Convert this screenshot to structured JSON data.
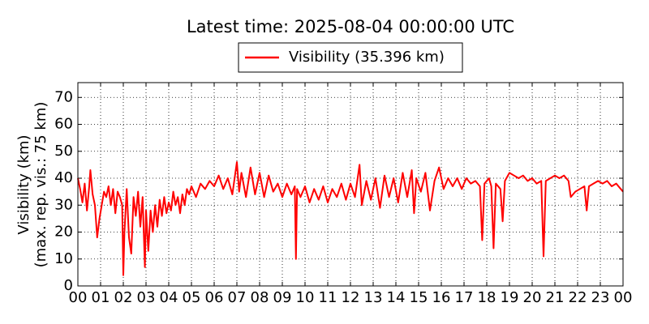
{
  "chart_data": {
    "type": "line",
    "title": "Latest time: 2025-08-04 00:00:00 UTC",
    "ylabel": [
      "Visibility (km)",
      "(max. rep. vis.: 75 km)"
    ],
    "grid": true,
    "xlim": [
      0,
      24
    ],
    "ylim": [
      0,
      75.5
    ],
    "xticks": [
      {
        "value": 0,
        "label": "00"
      },
      {
        "value": 1,
        "label": "01"
      },
      {
        "value": 2,
        "label": "02"
      },
      {
        "value": 3,
        "label": "03"
      },
      {
        "value": 4,
        "label": "04"
      },
      {
        "value": 5,
        "label": "05"
      },
      {
        "value": 6,
        "label": "06"
      },
      {
        "value": 7,
        "label": "07"
      },
      {
        "value": 8,
        "label": "08"
      },
      {
        "value": 9,
        "label": "09"
      },
      {
        "value": 10,
        "label": "10"
      },
      {
        "value": 11,
        "label": "11"
      },
      {
        "value": 12,
        "label": "12"
      },
      {
        "value": 13,
        "label": "13"
      },
      {
        "value": 14,
        "label": "14"
      },
      {
        "value": 15,
        "label": "15"
      },
      {
        "value": 16,
        "label": "16"
      },
      {
        "value": 17,
        "label": "17"
      },
      {
        "value": 18,
        "label": "18"
      },
      {
        "value": 19,
        "label": "19"
      },
      {
        "value": 20,
        "label": "20"
      },
      {
        "value": 21,
        "label": "21"
      },
      {
        "value": 22,
        "label": "22"
      },
      {
        "value": 23,
        "label": "23"
      },
      {
        "value": 24,
        "label": "00"
      }
    ],
    "yticks": [
      0,
      10,
      20,
      30,
      40,
      50,
      60,
      70
    ],
    "x": [
      0.0,
      0.1,
      0.2,
      0.3,
      0.4,
      0.5,
      0.55,
      0.65,
      0.75,
      0.85,
      0.95,
      1.05,
      1.15,
      1.25,
      1.35,
      1.45,
      1.55,
      1.65,
      1.75,
      1.85,
      1.95,
      2.0,
      2.05,
      2.15,
      2.25,
      2.35,
      2.45,
      2.55,
      2.65,
      2.75,
      2.85,
      2.95,
      3.0,
      3.1,
      3.2,
      3.3,
      3.4,
      3.5,
      3.6,
      3.7,
      3.8,
      3.9,
      4.0,
      4.1,
      4.2,
      4.3,
      4.4,
      4.5,
      4.6,
      4.7,
      4.8,
      4.9,
      5.0,
      5.2,
      5.4,
      5.6,
      5.8,
      6.0,
      6.2,
      6.4,
      6.6,
      6.8,
      7.0,
      7.1,
      7.2,
      7.4,
      7.6,
      7.8,
      8.0,
      8.2,
      8.4,
      8.6,
      8.8,
      9.0,
      9.2,
      9.4,
      9.55,
      9.6,
      9.65,
      9.8,
      10.0,
      10.2,
      10.4,
      10.6,
      10.8,
      11.0,
      11.2,
      11.4,
      11.6,
      11.8,
      12.0,
      12.2,
      12.4,
      12.5,
      12.7,
      12.9,
      13.1,
      13.3,
      13.5,
      13.7,
      13.9,
      14.1,
      14.3,
      14.5,
      14.7,
      14.8,
      14.9,
      15.1,
      15.3,
      15.5,
      15.7,
      15.9,
      16.1,
      16.3,
      16.5,
      16.7,
      16.9,
      17.1,
      17.3,
      17.5,
      17.7,
      17.8,
      17.9,
      18.1,
      18.2,
      18.3,
      18.4,
      18.6,
      18.7,
      18.8,
      19.0,
      19.2,
      19.4,
      19.6,
      19.8,
      20.0,
      20.2,
      20.4,
      20.5,
      20.6,
      20.8,
      21.0,
      21.2,
      21.4,
      21.6,
      21.7,
      21.9,
      22.1,
      22.3,
      22.4,
      22.5,
      22.7,
      22.9,
      23.1,
      23.3,
      23.5,
      23.7,
      23.9,
      24.0
    ],
    "series": [
      {
        "name": "Visibility (35.396 km)",
        "color": "#ff0000",
        "values": [
          40,
          36,
          31,
          38,
          28,
          37,
          43,
          34,
          30,
          18,
          25,
          30,
          35,
          33,
          37,
          30,
          36,
          27,
          35,
          33,
          30,
          4,
          20,
          36,
          18,
          12,
          33,
          26,
          35,
          22,
          33,
          7,
          28,
          13,
          28,
          20,
          30,
          22,
          32,
          26,
          33,
          27,
          31,
          28,
          35,
          30,
          33,
          27,
          34,
          30,
          36,
          34,
          37,
          33,
          38,
          36,
          39,
          37,
          41,
          36,
          40,
          34,
          46,
          35,
          42,
          33,
          44,
          34,
          42,
          33,
          41,
          35,
          38,
          33,
          38,
          34,
          37,
          10,
          36,
          33,
          37,
          31,
          36,
          32,
          37,
          31,
          36,
          33,
          38,
          32,
          38,
          33,
          45,
          30,
          39,
          32,
          40,
          29,
          41,
          33,
          40,
          31,
          42,
          33,
          43,
          27,
          40,
          35,
          42,
          28,
          39,
          44,
          36,
          40,
          37,
          40,
          36,
          40,
          38,
          39,
          37,
          17,
          38,
          40,
          37,
          14,
          38,
          36,
          24,
          39,
          42,
          41,
          40,
          41,
          39,
          40,
          38,
          39,
          11,
          39,
          40,
          41,
          40,
          41,
          39,
          33,
          35,
          36,
          37,
          28,
          37,
          38,
          39,
          38,
          39,
          37,
          38,
          36,
          35
        ]
      }
    ]
  }
}
